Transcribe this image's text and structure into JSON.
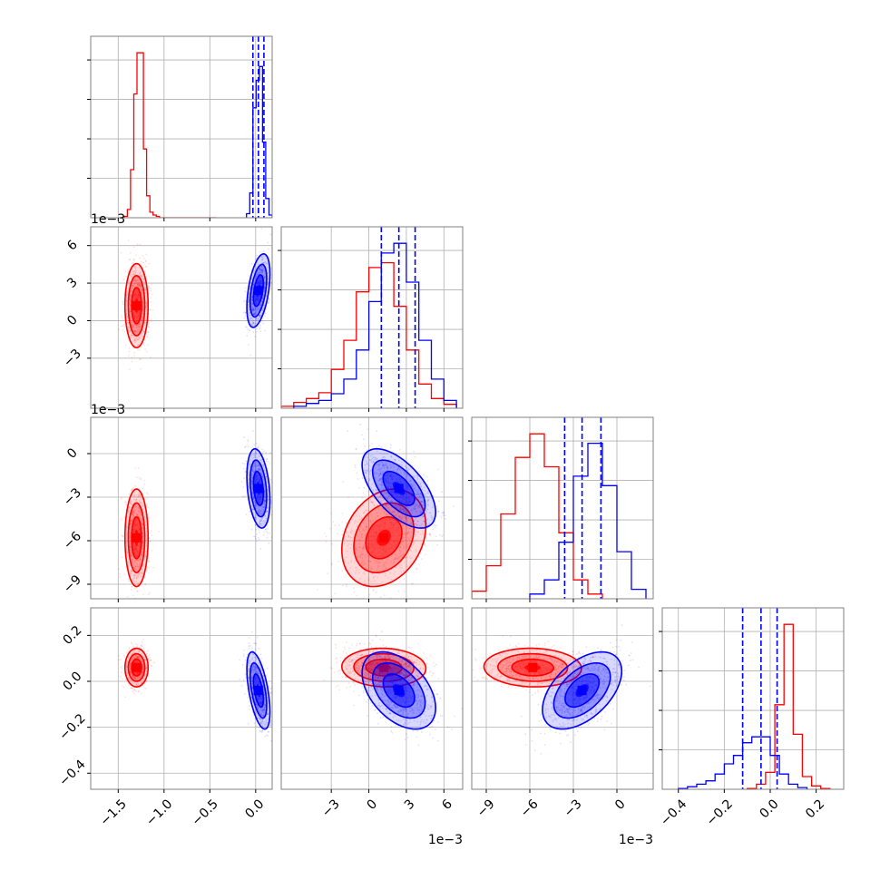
{
  "chart_data": {
    "type": "corner",
    "grid": true,
    "colors": {
      "a": "#ff0000",
      "b": "#0000ff"
    },
    "params": [
      {
        "range": [
          -1.8,
          0.18
        ],
        "ticks": [
          -1.5,
          -1.0,
          -0.5,
          0.0
        ],
        "tick_labels": [
          "−1.5",
          "−1.0",
          "−0.5",
          "0.0"
        ],
        "offset": ""
      },
      {
        "range": [
          -7.0,
          7.5
        ],
        "ticks": [
          -3,
          0,
          3,
          6
        ],
        "tick_labels": [
          "−3",
          "0",
          "3",
          "6"
        ],
        "offset": "1e−3"
      },
      {
        "range": [
          -10.0,
          2.5
        ],
        "ticks": [
          -9,
          -6,
          -3,
          0
        ],
        "tick_labels": [
          "−9",
          "−6",
          "−3",
          "0"
        ],
        "offset": "1e−3"
      },
      {
        "range": [
          -0.47,
          0.32
        ],
        "ticks": [
          -0.4,
          -0.2,
          0.0,
          0.2
        ],
        "tick_labels": [
          "−0.4",
          "−0.2",
          "0.0",
          "0.2"
        ],
        "offset": ""
      }
    ],
    "series": [
      {
        "key": "a",
        "means": [
          -1.3,
          1.2,
          -5.8,
          0.06
        ],
        "sds": [
          0.06,
          1.6,
          1.6,
          0.04
        ]
      },
      {
        "key": "b",
        "means": [
          0.03,
          2.4,
          -2.4,
          -0.04
        ],
        "sds": [
          0.06,
          1.4,
          1.3,
          0.08
        ]
      }
    ],
    "correlations": {
      "a": {
        "1_2": 0.25,
        "1_3": -0.05,
        "2_3": -0.05
      },
      "b": {
        "0_1": 0.45,
        "0_2": -0.3,
        "0_3": -0.55,
        "1_2": -0.6,
        "1_3": -0.45,
        "2_3": 0.5
      }
    },
    "quantile_lines": [
      {
        "param": 0,
        "values": [
          -0.03,
          0.03,
          0.09
        ]
      },
      {
        "param": 1,
        "values": [
          1.0,
          2.4,
          3.7
        ]
      },
      {
        "param": 2,
        "values": [
          -3.6,
          -2.4,
          -1.1
        ]
      },
      {
        "param": 3,
        "values": [
          -0.12,
          -0.04,
          0.03
        ]
      }
    ],
    "histograms": [
      {
        "param": 0,
        "a": {
          "edges": [
            -1.47,
            -1.435,
            -1.4,
            -1.365,
            -1.33,
            -1.295,
            -1.26,
            -1.225,
            -1.19,
            -1.155,
            -1.12,
            -1.085,
            -1.05,
            -1.015,
            -0.98,
            -0.8,
            -0.56,
            -0.43
          ],
          "counts": [
            0,
            1,
            6,
            35,
            90,
            120,
            120,
            50,
            16,
            4,
            2,
            1,
            0,
            0,
            0,
            0,
            0
          ]
        },
        "b": {
          "edges": [
            -0.1,
            -0.065,
            -0.03,
            0.005,
            0.04,
            0.075,
            0.11,
            0.145,
            0.18
          ],
          "counts": [
            3,
            18,
            80,
            100,
            110,
            55,
            14,
            2
          ]
        }
      },
      {
        "param": 1,
        "a": {
          "edges": [
            -7.0,
            -6.0,
            -5.0,
            -4.0,
            -3.0,
            -2.0,
            -1.0,
            0.0,
            1.0,
            2.0,
            3.0,
            4.0,
            5.0,
            6.0,
            7.0
          ],
          "counts": [
            2,
            6,
            10,
            16,
            40,
            70,
            120,
            145,
            150,
            105,
            60,
            25,
            10,
            4
          ]
        },
        "b": {
          "edges": [
            -6.0,
            -5.0,
            -4.0,
            -3.0,
            -2.0,
            -1.0,
            0.0,
            1.0,
            2.0,
            3.0,
            4.0,
            5.0,
            6.0,
            7.0
          ],
          "counts": [
            2,
            5,
            8,
            15,
            30,
            60,
            110,
            160,
            170,
            130,
            70,
            30,
            8
          ]
        }
      },
      {
        "param": 2,
        "a": {
          "edges": [
            -10.0,
            -9.0,
            -8.0,
            -7.0,
            -6.0,
            -5.0,
            -4.0,
            -3.0,
            -2.0,
            -1.0
          ],
          "counts": [
            8,
            35,
            90,
            150,
            175,
            140,
            70,
            20,
            5
          ]
        },
        "b": {
          "edges": [
            -6.0,
            -5.0,
            -4.0,
            -3.0,
            -2.0,
            -1.0,
            0.0,
            1.0,
            2.0
          ],
          "counts": [
            5,
            20,
            60,
            130,
            165,
            120,
            50,
            10
          ]
        }
      },
      {
        "param": 3,
        "a": {
          "edges": [
            -0.1,
            -0.06,
            -0.02,
            0.02,
            0.06,
            0.1,
            0.14,
            0.18,
            0.22,
            0.26
          ],
          "counts": [
            1,
            6,
            20,
            100,
            195,
            65,
            15,
            4,
            1
          ]
        },
        "b": {
          "edges": [
            -0.4,
            -0.36,
            -0.32,
            -0.28,
            -0.24,
            -0.2,
            -0.16,
            -0.12,
            -0.08,
            -0.04,
            0.0,
            0.04,
            0.08,
            0.12,
            0.16
          ],
          "counts": [
            1,
            3,
            6,
            10,
            18,
            30,
            40,
            55,
            62,
            62,
            40,
            18,
            6,
            2
          ]
        }
      }
    ]
  }
}
